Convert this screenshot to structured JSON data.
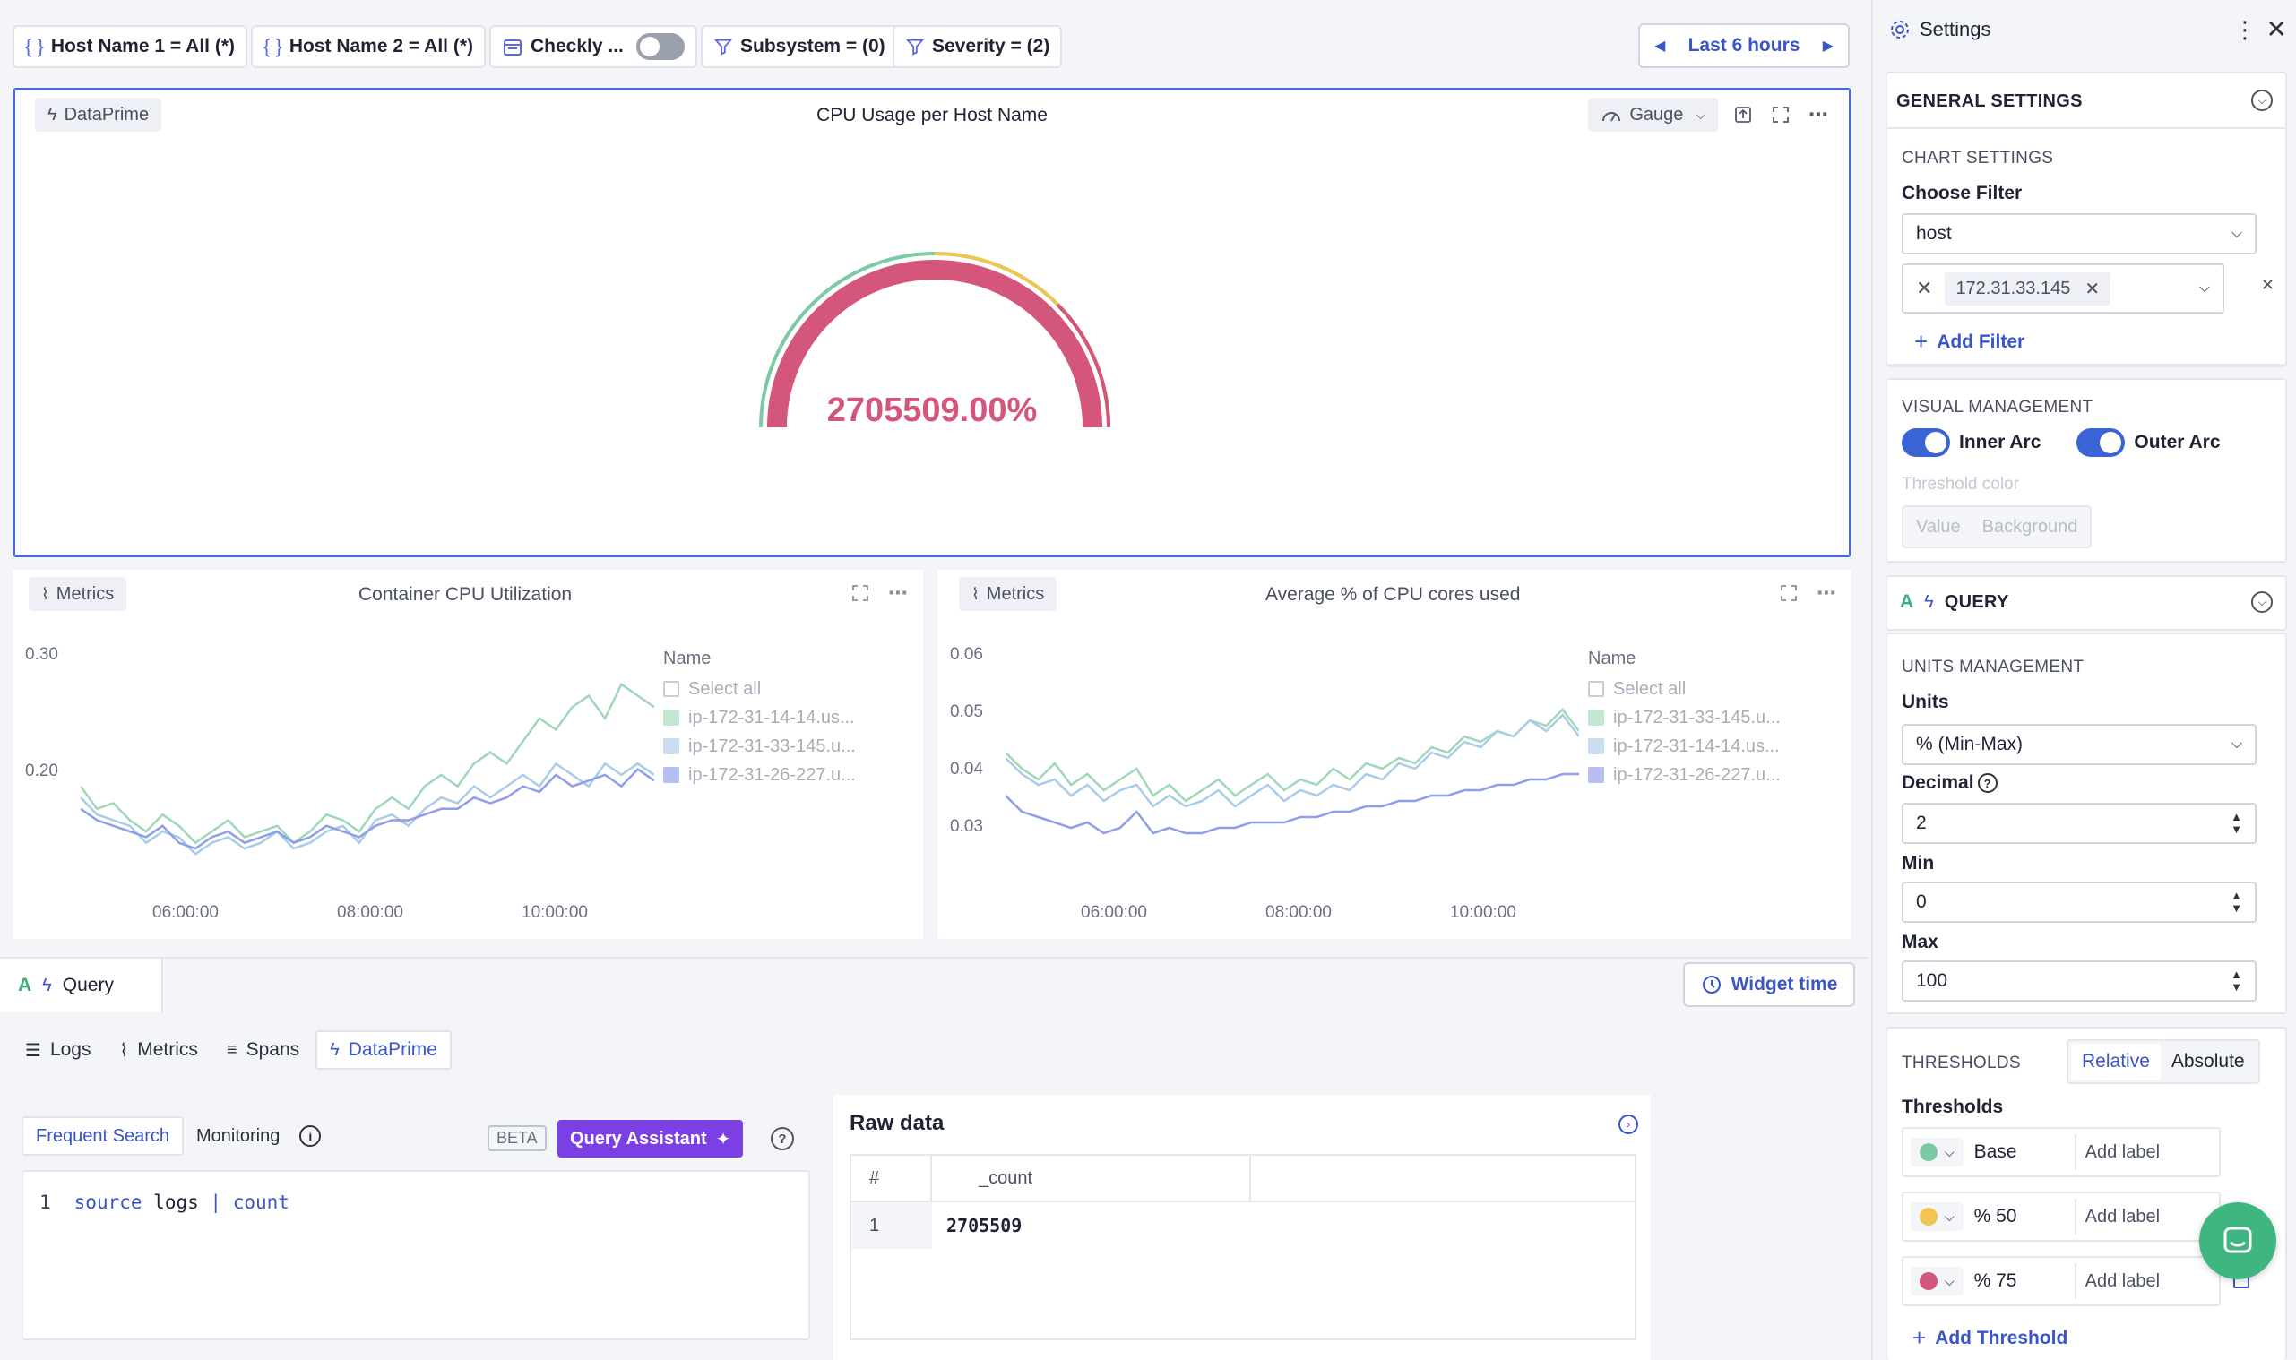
{
  "filters": {
    "host1": "Host Name 1 = All (*)",
    "host2": "Host Name 2 = All (*)",
    "checkly": "Checkly ...",
    "subsystem": "Subsystem = (0)",
    "severity": "Severity = (2)",
    "time_range": "Last 6 hours"
  },
  "gauge_panel": {
    "source": "DataPrime",
    "title": "CPU Usage per Host Name",
    "type_label": "Gauge",
    "value_text": "2705509.00%",
    "colors": {
      "value": "#d4567a",
      "base": "#7dc9a4",
      "mid": "#f0c552"
    }
  },
  "chart1": {
    "source": "Metrics",
    "title": "Container CPU Utilization",
    "legend_title": "Name",
    "select_all": "Select all",
    "series": [
      "ip-172-31-14-14.us...",
      "ip-172-31-33-145.u...",
      "ip-172-31-26-227.u..."
    ]
  },
  "chart2": {
    "source": "Metrics",
    "title": "Average % of CPU cores used",
    "legend_title": "Name",
    "select_all": "Select all",
    "series": [
      "ip-172-31-33-145.u...",
      "ip-172-31-14-14.us...",
      "ip-172-31-26-227.u..."
    ]
  },
  "chart_data": [
    {
      "type": "line",
      "title": "Container CPU Utilization",
      "x_ticks": [
        "06:00:00",
        "08:00:00",
        "10:00:00"
      ],
      "y_ticks": [
        "0.30",
        "0.20"
      ],
      "ylim": [
        0.13,
        0.32
      ],
      "series": [
        {
          "name": "ip-172-31-14-14.us...",
          "color": "#9fd8b8",
          "values": [
            0.2,
            0.18,
            0.185,
            0.17,
            0.16,
            0.175,
            0.165,
            0.15,
            0.16,
            0.17,
            0.155,
            0.16,
            0.165,
            0.15,
            0.16,
            0.175,
            0.17,
            0.16,
            0.18,
            0.19,
            0.18,
            0.2,
            0.21,
            0.2,
            0.22,
            0.23,
            0.22,
            0.24,
            0.26,
            0.25,
            0.27,
            0.28,
            0.26,
            0.29,
            0.28,
            0.27
          ]
        },
        {
          "name": "ip-172-31-33-145.u...",
          "color": "#a9cde8",
          "values": [
            0.19,
            0.175,
            0.17,
            0.165,
            0.15,
            0.16,
            0.155,
            0.14,
            0.15,
            0.155,
            0.145,
            0.15,
            0.16,
            0.145,
            0.15,
            0.16,
            0.165,
            0.15,
            0.17,
            0.175,
            0.165,
            0.18,
            0.19,
            0.185,
            0.2,
            0.19,
            0.2,
            0.21,
            0.2,
            0.22,
            0.21,
            0.2,
            0.22,
            0.21,
            0.22,
            0.21
          ]
        },
        {
          "name": "ip-172-31-26-227.u...",
          "color": "#8f9ee8",
          "values": [
            0.18,
            0.17,
            0.165,
            0.16,
            0.155,
            0.165,
            0.15,
            0.145,
            0.155,
            0.16,
            0.15,
            0.155,
            0.16,
            0.15,
            0.155,
            0.165,
            0.16,
            0.155,
            0.165,
            0.17,
            0.17,
            0.175,
            0.18,
            0.18,
            0.19,
            0.185,
            0.19,
            0.2,
            0.195,
            0.21,
            0.2,
            0.205,
            0.21,
            0.2,
            0.215,
            0.205
          ]
        }
      ]
    },
    {
      "type": "line",
      "title": "Average % of CPU cores used",
      "x_ticks": [
        "06:00:00",
        "08:00:00",
        "10:00:00"
      ],
      "y_ticks": [
        "0.06",
        "0.05",
        "0.04",
        "0.03"
      ],
      "ylim": [
        0.025,
        0.065
      ],
      "series": [
        {
          "name": "ip-172-31-33-145.u...",
          "color": "#9fd8b8",
          "values": [
            0.046,
            0.043,
            0.041,
            0.044,
            0.04,
            0.042,
            0.039,
            0.041,
            0.043,
            0.038,
            0.04,
            0.037,
            0.039,
            0.041,
            0.038,
            0.04,
            0.042,
            0.039,
            0.041,
            0.04,
            0.043,
            0.041,
            0.044,
            0.043,
            0.045,
            0.044,
            0.047,
            0.046,
            0.049,
            0.048,
            0.05,
            0.049,
            0.052,
            0.051,
            0.054,
            0.05
          ]
        },
        {
          "name": "ip-172-31-14-14.us...",
          "color": "#a9cde8",
          "values": [
            0.045,
            0.042,
            0.04,
            0.041,
            0.038,
            0.04,
            0.037,
            0.039,
            0.04,
            0.036,
            0.038,
            0.036,
            0.037,
            0.039,
            0.036,
            0.038,
            0.04,
            0.037,
            0.039,
            0.038,
            0.04,
            0.039,
            0.042,
            0.041,
            0.044,
            0.043,
            0.046,
            0.045,
            0.048,
            0.047,
            0.05,
            0.049,
            0.052,
            0.05,
            0.053,
            0.049
          ]
        },
        {
          "name": "ip-172-31-26-227.u...",
          "color": "#8f9ee8",
          "values": [
            0.038,
            0.035,
            0.034,
            0.033,
            0.032,
            0.033,
            0.031,
            0.032,
            0.035,
            0.031,
            0.032,
            0.031,
            0.031,
            0.032,
            0.032,
            0.033,
            0.033,
            0.033,
            0.034,
            0.034,
            0.035,
            0.035,
            0.036,
            0.036,
            0.037,
            0.037,
            0.038,
            0.038,
            0.039,
            0.039,
            0.04,
            0.04,
            0.041,
            0.041,
            0.042,
            0.042
          ]
        }
      ]
    }
  ],
  "query_bar": {
    "letter": "A",
    "label": "Query",
    "widget_time": "Widget time"
  },
  "source_tabs": [
    "Logs",
    "Metrics",
    "Spans",
    "DataPrime"
  ],
  "editor": {
    "tab_frequent": "Frequent Search",
    "tab_monitoring": "Monitoring",
    "beta": "BETA",
    "assistant": "Query Assistant",
    "line_no": "1",
    "kw_source": "source",
    "kw_logs": "logs",
    "pipe": "|",
    "kw_count": "count"
  },
  "raw_data": {
    "title": "Raw data",
    "col_hash": "#",
    "col_count": "_count",
    "row_no": "1",
    "row_value": "2705509"
  },
  "settings": {
    "title": "Settings",
    "general": "GENERAL SETTINGS",
    "chart_settings": "CHART SETTINGS",
    "choose_filter": "Choose Filter",
    "filter_value": "host",
    "filter_tag": "172.31.33.145",
    "add_filter": "Add Filter",
    "visual_management": "VISUAL MANAGEMENT",
    "inner_arc": "Inner Arc",
    "outer_arc": "Outer Arc",
    "threshold_color": "Threshold color",
    "value_btn": "Value",
    "background_btn": "Background",
    "query_letter": "A",
    "query": "QUERY",
    "units_management": "UNITS MANAGEMENT",
    "units_label": "Units",
    "units_value": "% (Min-Max)",
    "decimal_label": "Decimal",
    "decimal_value": "2",
    "min_label": "Min",
    "min_value": "0",
    "max_label": "Max",
    "max_value": "100",
    "thresholds_heading": "THRESHOLDS",
    "relative": "Relative",
    "absolute": "Absolute",
    "thresholds_label": "Thresholds",
    "threshold_rows": [
      {
        "label": "Base",
        "color": "#7dc9a4",
        "placeholder": "Add label"
      },
      {
        "label": "% 50",
        "color": "#f0c552",
        "placeholder": "Add label"
      },
      {
        "label": "% 75",
        "color": "#d4567a",
        "placeholder": "Add label"
      }
    ],
    "add_threshold": "Add Threshold"
  }
}
